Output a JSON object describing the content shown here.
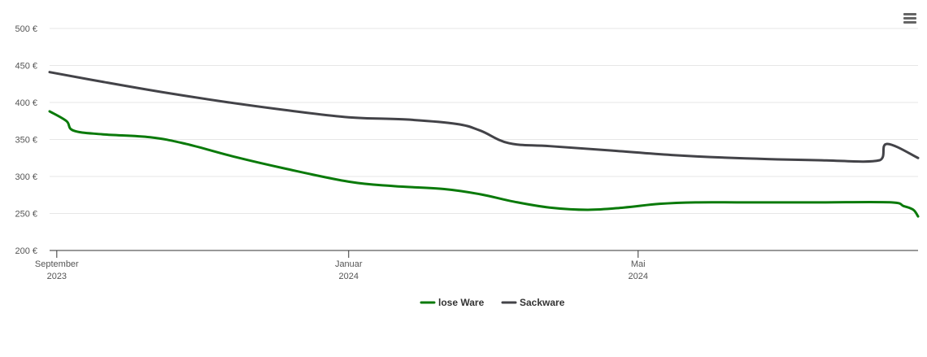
{
  "chart_data": {
    "type": "line",
    "title": "",
    "xlabel": "",
    "ylabel": "",
    "ylim": [
      200,
      500
    ],
    "xlim": [
      "2023-08-29",
      "2024-08-26"
    ],
    "y_ticks": [
      {
        "value": 200,
        "label": "200 €"
      },
      {
        "value": 250,
        "label": "250 €"
      },
      {
        "value": 300,
        "label": "300 €"
      },
      {
        "value": 350,
        "label": "350 €"
      },
      {
        "value": 400,
        "label": "400 €"
      },
      {
        "value": 450,
        "label": "450 €"
      },
      {
        "value": 500,
        "label": "500 €"
      }
    ],
    "x_ticks": [
      {
        "date": "2023-09-01",
        "line1": "September",
        "line2": "2023"
      },
      {
        "date": "2024-01-01",
        "line1": "Januar",
        "line2": "2024"
      },
      {
        "date": "2024-05-01",
        "line1": "Mai",
        "line2": "2024"
      }
    ],
    "grid": true,
    "legend_position": "bottom-center",
    "series": [
      {
        "name": "lose Ware",
        "color": "#0a7a0a",
        "points": [
          {
            "x": "2023-08-29",
            "y": 388
          },
          {
            "x": "2023-09-05",
            "y": 375
          },
          {
            "x": "2023-09-08",
            "y": 362
          },
          {
            "x": "2023-09-20",
            "y": 357
          },
          {
            "x": "2023-10-10",
            "y": 353
          },
          {
            "x": "2023-10-25",
            "y": 344
          },
          {
            "x": "2023-11-15",
            "y": 326
          },
          {
            "x": "2023-12-05",
            "y": 311
          },
          {
            "x": "2024-01-01",
            "y": 293
          },
          {
            "x": "2024-01-20",
            "y": 287
          },
          {
            "x": "2024-02-10",
            "y": 283
          },
          {
            "x": "2024-02-25",
            "y": 276
          },
          {
            "x": "2024-03-10",
            "y": 266
          },
          {
            "x": "2024-03-25",
            "y": 258
          },
          {
            "x": "2024-04-10",
            "y": 255
          },
          {
            "x": "2024-04-25",
            "y": 258
          },
          {
            "x": "2024-05-10",
            "y": 263
          },
          {
            "x": "2024-05-25",
            "y": 265
          },
          {
            "x": "2024-06-15",
            "y": 265
          },
          {
            "x": "2024-07-15",
            "y": 265
          },
          {
            "x": "2024-08-15",
            "y": 265
          },
          {
            "x": "2024-08-20",
            "y": 260
          },
          {
            "x": "2024-08-24",
            "y": 255
          },
          {
            "x": "2024-08-26",
            "y": 246
          }
        ]
      },
      {
        "name": "Sackware",
        "color": "#434348",
        "points": [
          {
            "x": "2023-08-29",
            "y": 441
          },
          {
            "x": "2023-09-20",
            "y": 428
          },
          {
            "x": "2023-10-15",
            "y": 414
          },
          {
            "x": "2023-11-10",
            "y": 401
          },
          {
            "x": "2023-12-05",
            "y": 390
          },
          {
            "x": "2024-01-01",
            "y": 380
          },
          {
            "x": "2024-01-25",
            "y": 377
          },
          {
            "x": "2024-02-15",
            "y": 371
          },
          {
            "x": "2024-02-25",
            "y": 362
          },
          {
            "x": "2024-03-08",
            "y": 345
          },
          {
            "x": "2024-03-25",
            "y": 341
          },
          {
            "x": "2024-04-20",
            "y": 335
          },
          {
            "x": "2024-05-15",
            "y": 329
          },
          {
            "x": "2024-06-10",
            "y": 325
          },
          {
            "x": "2024-07-15",
            "y": 322
          },
          {
            "x": "2024-08-10",
            "y": 322
          },
          {
            "x": "2024-08-13",
            "y": 344
          },
          {
            "x": "2024-08-26",
            "y": 325
          }
        ]
      }
    ]
  },
  "menu": {
    "icon": "hamburger-menu-icon"
  }
}
